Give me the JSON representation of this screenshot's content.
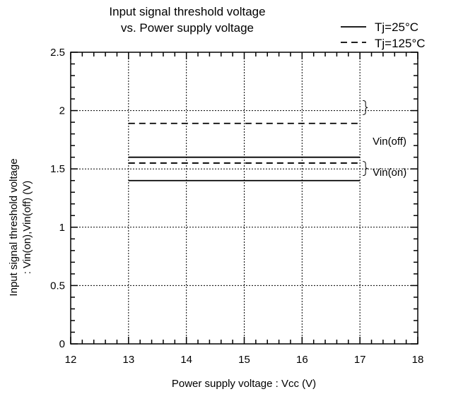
{
  "chart_data": {
    "type": "line",
    "title": [
      "Input signal threshold voltage",
      "vs. Power supply voltage"
    ],
    "xlabel": "Power supply voltage : Vcc (V)",
    "ylabel": [
      "Input signal threshold voltage",
      ": Vin(on),Vin(off) (V)"
    ],
    "xlim": [
      12,
      18
    ],
    "ylim": [
      0,
      2.5
    ],
    "xticks": [
      "12",
      "13",
      "14",
      "15",
      "16",
      "17",
      "18"
    ],
    "yticks": [
      "0",
      "0.5",
      "1",
      "1.5",
      "2",
      "2.5"
    ],
    "x_minor_step": 0.2,
    "y_minor_step": 0.1,
    "grid": true,
    "legend_position": "top-right",
    "legend": [
      {
        "label": "Tj=25°C",
        "style": "solid"
      },
      {
        "label": "Tj=125°C",
        "style": "dashed"
      }
    ],
    "series": [
      {
        "name": "Tj=25°C",
        "style": "solid",
        "x": [
          13,
          17
        ],
        "vin_off": [
          1.6,
          1.6
        ],
        "vin_on": [
          1.4,
          1.4
        ]
      },
      {
        "name": "Tj=125°C",
        "style": "dashed",
        "x": [
          13,
          17
        ],
        "vin_off": [
          1.89,
          1.89
        ],
        "vin_on": [
          1.55,
          1.55
        ]
      }
    ],
    "annotations": [
      "Vin(off)",
      "Vin(on)"
    ],
    "line_color": "#000000",
    "background": "#ffffff"
  }
}
